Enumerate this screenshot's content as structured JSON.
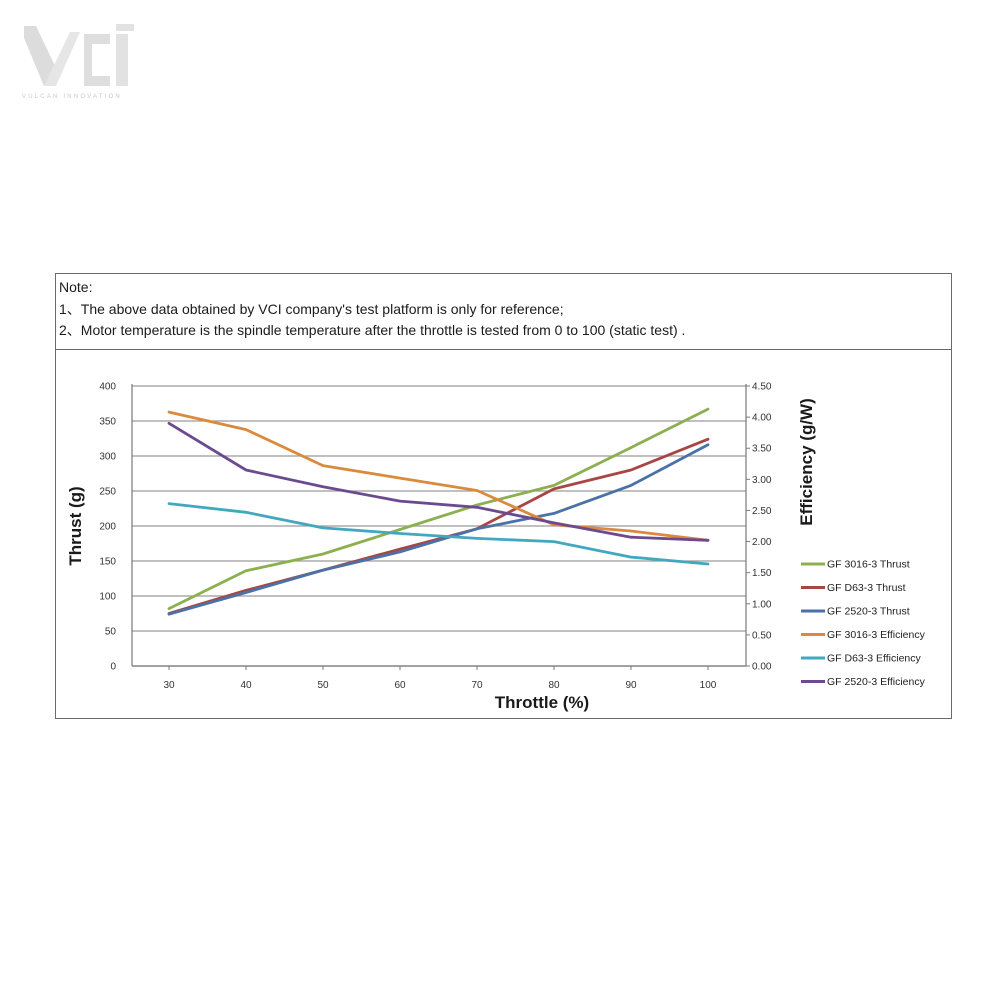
{
  "brand": {
    "tagline": "VULCAN INNOVATION"
  },
  "note": {
    "heading": "Note:",
    "line1": "1、The above data obtained by VCI company's test platform is only for reference;",
    "line2": "2、Motor temperature is the spindle temperature after the throttle is tested from 0 to 100   (static test) ."
  },
  "chart_data": {
    "type": "line",
    "x": [
      30,
      40,
      50,
      60,
      70,
      80,
      90,
      100
    ],
    "xlabel": "Throttle  (%)",
    "ylabel": "Thrust  (g)",
    "y2label": "Efficiency (g/W)",
    "xticks": [
      "30",
      "40",
      "50",
      "60",
      "70",
      "80",
      "90",
      "100"
    ],
    "yticks": [
      "0",
      "50",
      "100",
      "150",
      "200",
      "250",
      "300",
      "350",
      "400"
    ],
    "y2ticks": [
      "0.00",
      "0.50",
      "1.00",
      "1.50",
      "2.00",
      "2.50",
      "3.00",
      "3.50",
      "4.00",
      "4.50"
    ],
    "ylim": [
      0,
      400
    ],
    "y2lim": [
      0,
      4.5
    ],
    "grid": true,
    "legend_position": "right",
    "series": [
      {
        "name": "GF 3016-3 Thrust",
        "axis": "left",
        "color": "#8cb04f",
        "values": [
          82,
          136,
          160,
          195,
          230,
          258,
          312,
          367
        ]
      },
      {
        "name": "GF D63-3 Thrust",
        "axis": "left",
        "color": "#a84545",
        "values": [
          75,
          108,
          137,
          167,
          196,
          253,
          280,
          324
        ]
      },
      {
        "name": "GF 2520-3 Thrust",
        "axis": "left",
        "color": "#4a72a6",
        "values": [
          74,
          105,
          137,
          163,
          196,
          218,
          258,
          316
        ]
      },
      {
        "name": "GF 3016-3 Efficiency",
        "axis": "right",
        "color": "#db8a3d",
        "values": [
          4.08,
          3.8,
          3.22,
          3.02,
          2.82,
          2.27,
          2.17,
          2.02
        ]
      },
      {
        "name": "GF D63-3 Efficiency",
        "axis": "right",
        "color": "#43a8bf",
        "values": [
          2.61,
          2.47,
          2.22,
          2.13,
          2.05,
          2.0,
          1.75,
          1.64
        ]
      },
      {
        "name": "GF 2520-3 Efficiency",
        "axis": "right",
        "color": "#6c4a8f",
        "values": [
          3.9,
          3.15,
          2.88,
          2.65,
          2.55,
          2.3,
          2.07,
          2.02
        ]
      }
    ]
  }
}
